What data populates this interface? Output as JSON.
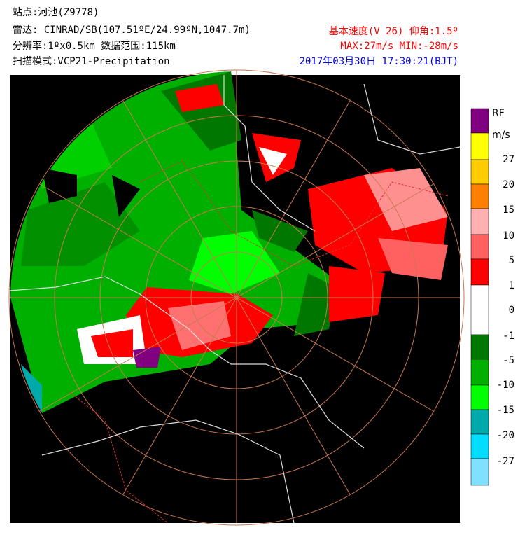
{
  "header": {
    "station": "站点:河池(Z9778)",
    "radar": "雷达: CINRAD/SB(107.51ºE/24.99ºN,1047.7m)",
    "resolution": "分辨率:1ºx0.5km 数据范围:115km",
    "scan_mode": "扫描模式:VCP21-Precipitation",
    "product": "基本速度(V 26) 仰角:1.5º",
    "range": "MAX:27m/s MIN:-28m/s",
    "time": "2017年03月30日 17:30:21(BJT)"
  },
  "legend": {
    "labels": [
      "RF",
      "m/s",
      "27",
      "20",
      "15",
      "10",
      "5",
      "1",
      "0",
      "-1",
      "-5",
      "-10",
      "-15",
      "-20",
      "-27"
    ],
    "colors": [
      "#800080",
      "#ffff00",
      "#ffcc00",
      "#ff8000",
      "#ffb0b0",
      "#ff6060",
      "#ff0000",
      "#ffffff",
      "#007800",
      "#00b000",
      "#00ff00",
      "#00aaaa",
      "#00ddff",
      "#80e0ff"
    ]
  }
}
